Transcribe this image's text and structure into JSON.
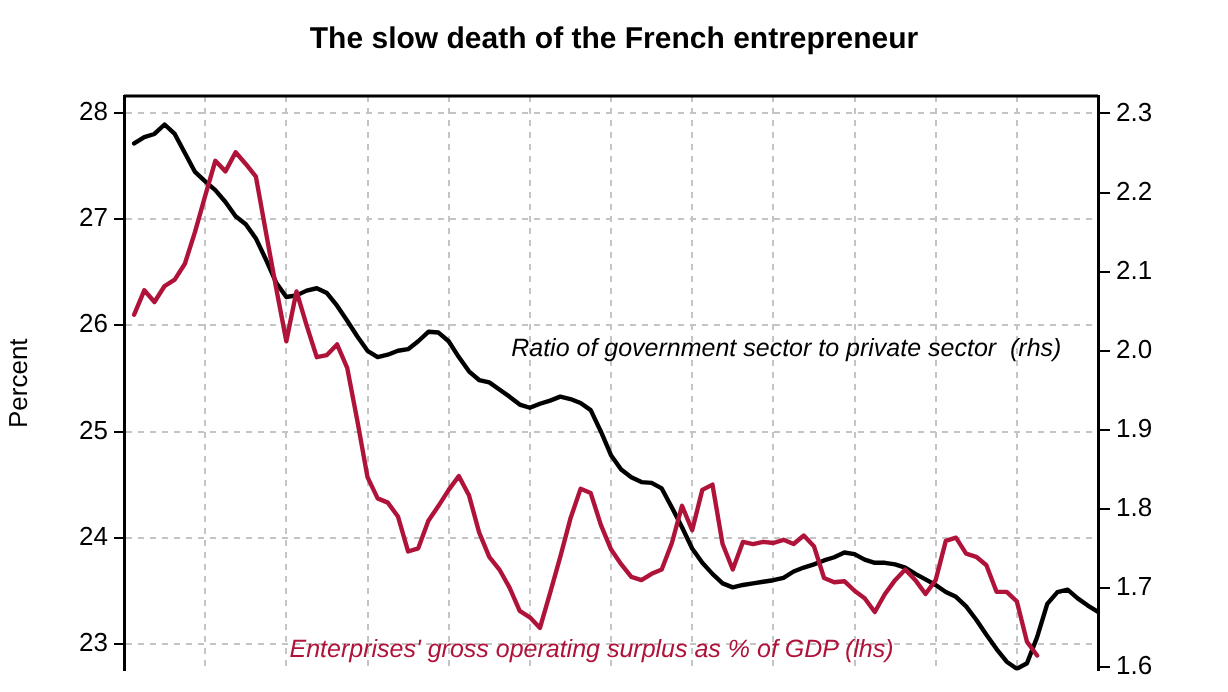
{
  "chart_data": {
    "type": "line",
    "title": "The slow death of the French entrepreneur",
    "ylabel": "Percent",
    "categories": [
      null,
      null,
      null,
      null,
      null,
      null,
      null,
      null,
      null,
      null,
      null,
      null,
      null,
      null,
      null,
      null,
      null,
      null,
      null,
      null,
      null,
      null,
      null,
      null,
      null,
      null,
      null,
      null,
      null,
      null,
      null,
      null,
      null,
      null,
      null,
      null,
      null,
      null,
      null,
      null,
      null,
      null,
      null,
      null,
      null,
      null,
      null,
      null,
      null,
      null,
      null,
      null,
      null,
      null,
      null,
      null,
      null,
      null,
      null,
      null,
      null,
      null,
      null,
      null,
      null,
      null,
      null,
      null,
      null,
      null,
      null,
      null,
      null,
      null,
      null,
      null,
      null,
      null,
      null,
      null,
      null,
      null,
      null,
      null,
      null,
      null,
      null,
      null,
      null,
      null,
      null,
      null,
      null,
      null,
      null,
      null,
      null
    ],
    "ylim": [
      22.75,
      28.16
    ],
    "yticks": [
      23,
      24,
      25,
      26,
      27,
      28
    ],
    "y2lim": [
      1.596,
      2.322
    ],
    "y2ticks": [
      1.6,
      1.7,
      1.8,
      1.9,
      {
        "value": 2,
        "label": "2.0"
      },
      2.1,
      2.2,
      2.3
    ],
    "tick_labels": "y",
    "grid": true,
    "legend": false,
    "marker": "none",
    "line_style": "solid",
    "series": [
      {
        "color": "#b0133a",
        "values": [
          null,
          26.1,
          26.33,
          26.22,
          26.37,
          26.43,
          26.58,
          26.88,
          27.22,
          27.55,
          27.45,
          27.63,
          27.52,
          27.4,
          26.87,
          26.35,
          25.85,
          26.32,
          26.0,
          25.7,
          25.72,
          25.82,
          25.6,
          25.1,
          24.57,
          24.37,
          24.33,
          24.2,
          23.87,
          23.9,
          24.16,
          24.3,
          24.45,
          24.58,
          24.4,
          24.05,
          23.82,
          23.7,
          23.53,
          23.31,
          23.25,
          23.15,
          23.48,
          23.82,
          24.18,
          24.46,
          24.42,
          24.12,
          23.89,
          23.75,
          23.63,
          23.6,
          23.66,
          23.7,
          23.95,
          24.3,
          24.07,
          24.45,
          24.5,
          23.94,
          23.7,
          23.96,
          23.94,
          23.96,
          23.95,
          23.98,
          23.94,
          24.02,
          23.92,
          23.62,
          23.58,
          23.59,
          23.5,
          23.43,
          23.3,
          23.47,
          23.6,
          23.7,
          23.6,
          23.47,
          23.6,
          23.97,
          24.0,
          23.85,
          23.82,
          23.74,
          23.49,
          23.49,
          23.4,
          23.02,
          22.89,
          null,
          null,
          null,
          null,
          null,
          null
        ]
      },
      {
        "color": "#000000",
        "axis": "y2",
        "values": [
          null,
          2.262,
          2.27,
          2.274,
          2.286,
          2.274,
          2.25,
          2.226,
          2.214,
          2.203,
          2.188,
          2.17,
          2.16,
          2.142,
          2.115,
          2.086,
          2.068,
          2.07,
          2.076,
          2.079,
          2.073,
          2.057,
          2.038,
          2.018,
          2.0,
          1.992,
          1.995,
          2.0,
          2.002,
          2.012,
          2.024,
          2.023,
          2.012,
          1.992,
          1.974,
          1.963,
          1.96,
          1.951,
          1.942,
          1.932,
          1.928,
          1.933,
          1.937,
          1.942,
          1.939,
          1.934,
          1.925,
          1.898,
          1.868,
          1.85,
          1.84,
          1.834,
          1.833,
          1.826,
          1.802,
          1.777,
          1.75,
          1.732,
          1.718,
          1.706,
          1.701,
          1.704,
          1.706,
          1.708,
          1.71,
          1.713,
          1.721,
          1.726,
          1.73,
          1.735,
          1.739,
          1.745,
          1.743,
          1.736,
          1.732,
          1.732,
          1.73,
          1.726,
          1.718,
          1.711,
          1.704,
          1.695,
          1.689,
          1.677,
          1.66,
          1.641,
          1.623,
          1.607,
          1.598,
          1.605,
          1.638,
          1.68,
          1.695,
          1.698,
          1.687,
          1.678,
          1.67
        ]
      }
    ],
    "annotations": [
      "Ratio of government sector to private sector  (rhs)",
      "Enterprises' gross operating surplus as % of GDP (lhs)"
    ]
  }
}
